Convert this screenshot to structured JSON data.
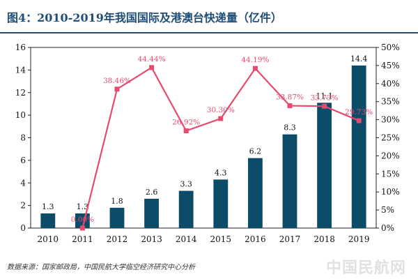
{
  "title": "图4：2010-2019年我国国际及港澳台快递量（亿件）",
  "source": "数据来源：国家邮政局，中国民航大学临空经济研究中心分析",
  "watermark": "中国民航网",
  "colors": {
    "bar": "#0d4c68",
    "line": "#e84a6f",
    "title": "#1f4e79"
  },
  "chart_data": {
    "type": "bar+line",
    "categories": [
      "2010",
      "2011",
      "2012",
      "2013",
      "2014",
      "2015",
      "2016",
      "2017",
      "2018",
      "2019"
    ],
    "series": [
      {
        "type": "bar",
        "axis": "left",
        "values": [
          1.3,
          1.3,
          1.8,
          2.6,
          3.3,
          4.3,
          6.2,
          8.3,
          11.1,
          14.4
        ],
        "labels": [
          "1.3",
          "1.3",
          "1.8",
          "2.6",
          "3.3",
          "4.3",
          "6.2",
          "8.3",
          "11.1",
          "14.4"
        ]
      },
      {
        "type": "line",
        "axis": "right",
        "values": [
          null,
          0.0,
          38.46,
          44.44,
          26.92,
          30.3,
          44.19,
          33.87,
          33.73,
          29.73
        ],
        "labels": [
          null,
          "0.00%",
          "38.46%",
          "44.44%",
          "26.92%",
          "30.30%",
          "44.19%",
          "33.87%",
          "33.73%",
          "29.73%"
        ]
      }
    ],
    "y_left": {
      "min": 0,
      "max": 16,
      "ticks": [
        "0",
        "2",
        "4",
        "6",
        "8",
        "10",
        "12",
        "14",
        "16"
      ]
    },
    "y_right": {
      "min": 0,
      "max": 50,
      "ticks": [
        "0%",
        "5%",
        "10%",
        "15%",
        "20%",
        "25%",
        "30%",
        "35%",
        "40%",
        "45%",
        "50%"
      ]
    },
    "grid": false,
    "legend": "none"
  }
}
